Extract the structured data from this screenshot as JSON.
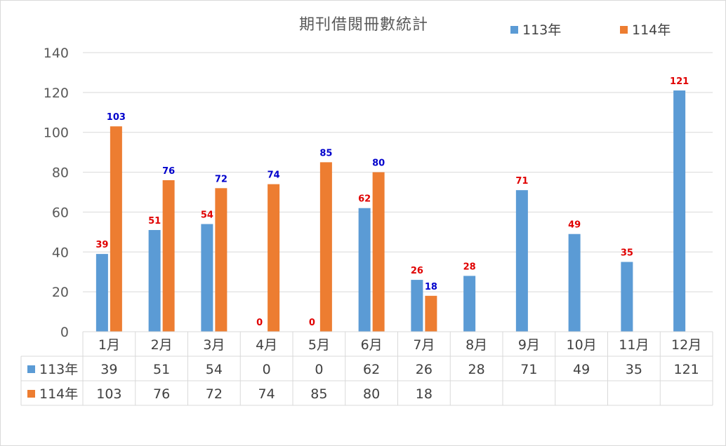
{
  "chart_data": {
    "type": "bar",
    "title": "期刊借閱冊數統計",
    "categories": [
      "1月",
      "2月",
      "3月",
      "4月",
      "5月",
      "6月",
      "7月",
      "8月",
      "9月",
      "10月",
      "11月",
      "12月"
    ],
    "series": [
      {
        "name": "113年",
        "color": "#5b9bd5",
        "label_color": "#e00000",
        "values": [
          39,
          51,
          54,
          0,
          0,
          62,
          26,
          28,
          71,
          49,
          35,
          121
        ]
      },
      {
        "name": "114年",
        "color": "#ed7d31",
        "label_color": "#0000cc",
        "values": [
          103,
          76,
          72,
          74,
          85,
          80,
          18,
          null,
          null,
          null,
          null,
          null
        ]
      }
    ],
    "ylim": [
      0,
      140
    ],
    "yticks": [
      0,
      20,
      40,
      60,
      80,
      100,
      120,
      140
    ],
    "grid": true,
    "legend": "top-right",
    "data_table": true
  }
}
